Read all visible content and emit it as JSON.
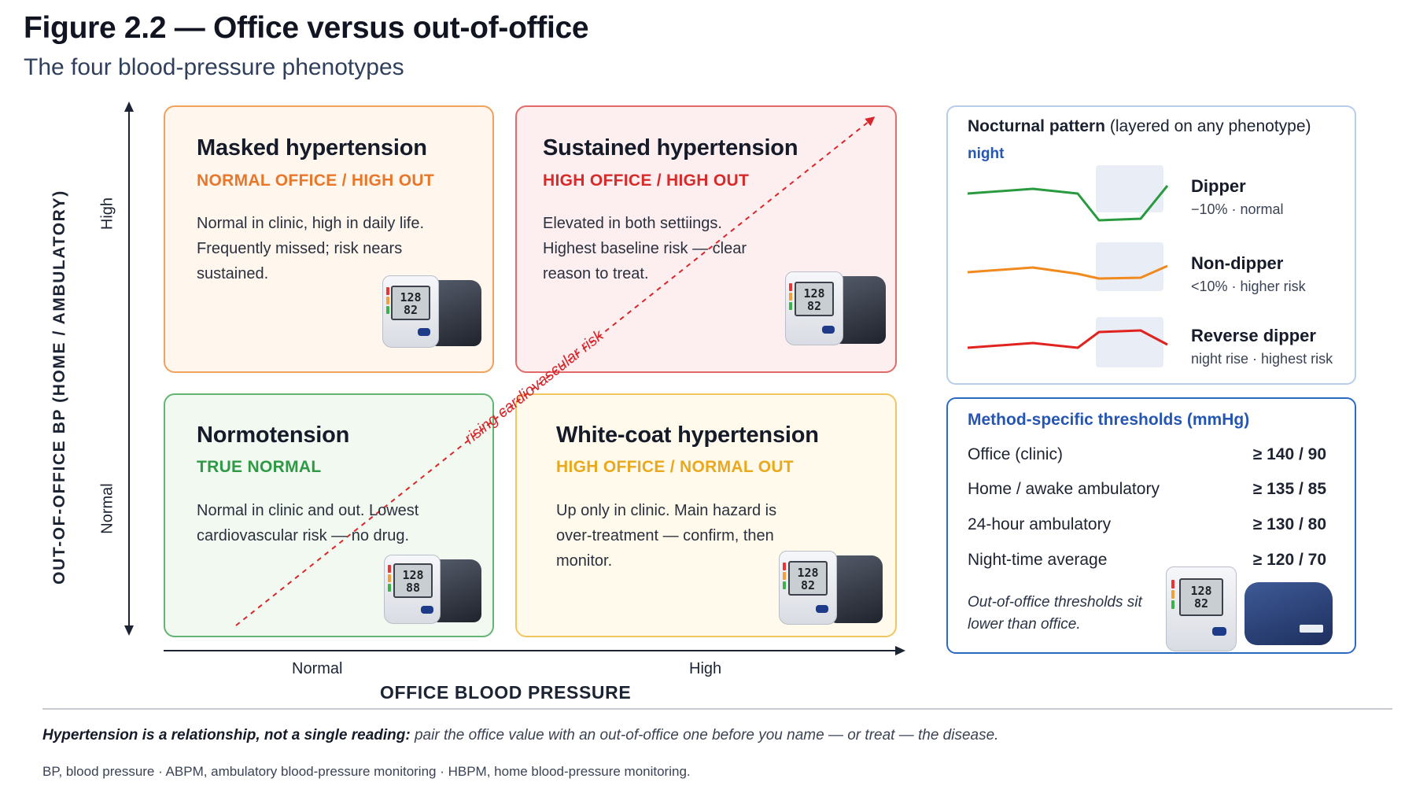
{
  "figure": {
    "title": "Figure 2.2 — Office versus out-of-office",
    "subtitle": "The four blood-pressure phenotypes"
  },
  "axes": {
    "y_title": "OUT-OF-OFFICE BP (HOME / AMBULATORY)",
    "y_high": "High",
    "y_normal": "Normal",
    "x_title": "OFFICE BLOOD PRESSURE",
    "x_normal": "Normal",
    "x_high": "High"
  },
  "quadrants": {
    "masked": {
      "name": "Masked hypertension",
      "tag": "NORMAL OFFICE / HIGH OUT",
      "desc": "Normal in clinic, high in daily life. Frequently missed; risk nears sustained.",
      "tag_color": "#e8772a",
      "device_systolic": "128",
      "device_diastolic": "82"
    },
    "sustained": {
      "name": "Sustained hypertension",
      "tag": "HIGH OFFICE / HIGH OUT",
      "desc": "Elevated in both settiings. Highest baseline risk — clear reason to treat.",
      "tag_color": "#d72a2a",
      "device_systolic": "128",
      "device_diastolic": "82"
    },
    "normotension": {
      "name": "Normotension",
      "tag": "TRUE NORMAL",
      "desc": "Normal in clinic and out. Lowest cardiovascular risk — no drug.",
      "tag_color": "#2f9a45",
      "device_systolic": "128",
      "device_diastolic": "88"
    },
    "whitecoat": {
      "name": "White-coat hypertension",
      "tag": "HIGH OFFICE / NORMAL OUT",
      "desc": "Up only in clinic. Main hazard is over-treatment — confirm, then monitor.",
      "tag_color": "#eaa81c",
      "device_systolic": "128",
      "device_diastolic": "82"
    }
  },
  "risk_arrow_label": "rising cardiovascular risk",
  "nocturnal": {
    "title_bold": "Nocturnal pattern",
    "title_light": "(layered on any phenotype)",
    "night_label": "night",
    "patterns": [
      {
        "name": "Dipper",
        "note": "−10% · normal",
        "color": "#2a9a3f"
      },
      {
        "name": "Non-dipper",
        "note": "<10% · higher risk",
        "color": "#f18a1e"
      },
      {
        "name": "Reverse dipper",
        "note": "night rise · highest risk",
        "color": "#e0231f"
      }
    ]
  },
  "thresholds": {
    "title": "Method-specific thresholds (mmHg)",
    "rows": [
      {
        "label": "Office (clinic)",
        "value": "≥ 140 / 90"
      },
      {
        "label": "Home / awake ambulatory",
        "value": "≥ 135 / 85"
      },
      {
        "label": "24-hour ambulatory",
        "value": "≥ 130 / 80"
      },
      {
        "label": "Night-time average",
        "value": "≥ 120 / 70"
      }
    ],
    "note": "Out-of-office thresholds sit lower than office.",
    "device_systolic": "128",
    "device_diastolic": "82"
  },
  "footer": {
    "note_bold": "Hypertension is a relationship, not a single reading:",
    "note_rest": " pair the office value with an out-of-office one before you name — or treat — the disease.",
    "abbreviations": "BP, blood pressure · ABPM, ambulatory blood-pressure monitoring · HBPM, home blood-pressure monitoring."
  }
}
